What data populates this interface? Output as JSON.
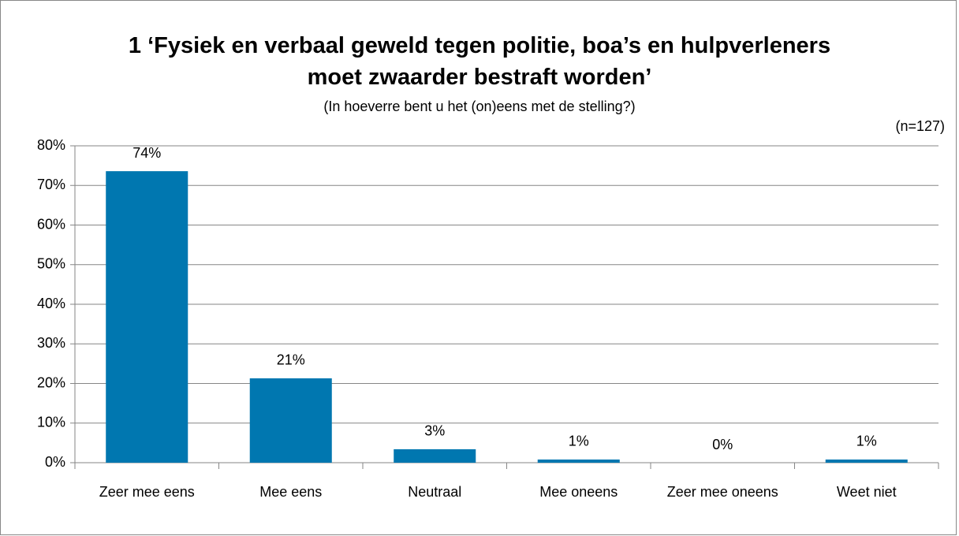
{
  "chart_data": {
    "type": "bar",
    "title": "1 ‘Fysiek en verbaal geweld tegen politie, boa’s en hulpverleners moet zwaarder bestraft worden’",
    "subtitle": "(In hoeverre bent u het (on)eens met de stelling?)",
    "annotation": "(n=127)",
    "categories": [
      "Zeer mee eens",
      "Mee eens",
      "Neutraal",
      "Mee oneens",
      "Zeer mee oneens",
      "Weet niet"
    ],
    "values": [
      73.6,
      21.3,
      3.4,
      0.8,
      0,
      0.8
    ],
    "value_labels": [
      "74%",
      "21%",
      "3%",
      "1%",
      "0%",
      "1%"
    ],
    "color": "#0077b0",
    "ylim": [
      0,
      80
    ],
    "yticks": [
      {
        "value": 0,
        "label": "0%"
      },
      {
        "value": 10,
        "label": "10%"
      },
      {
        "value": 20,
        "label": "20%"
      },
      {
        "value": 30,
        "label": "30%"
      },
      {
        "value": 40,
        "label": "40%"
      },
      {
        "value": 50,
        "label": "50%"
      },
      {
        "value": 60,
        "label": "60%"
      },
      {
        "value": 70,
        "label": "70%"
      },
      {
        "value": 80,
        "label": "80%"
      }
    ],
    "grid": true
  }
}
